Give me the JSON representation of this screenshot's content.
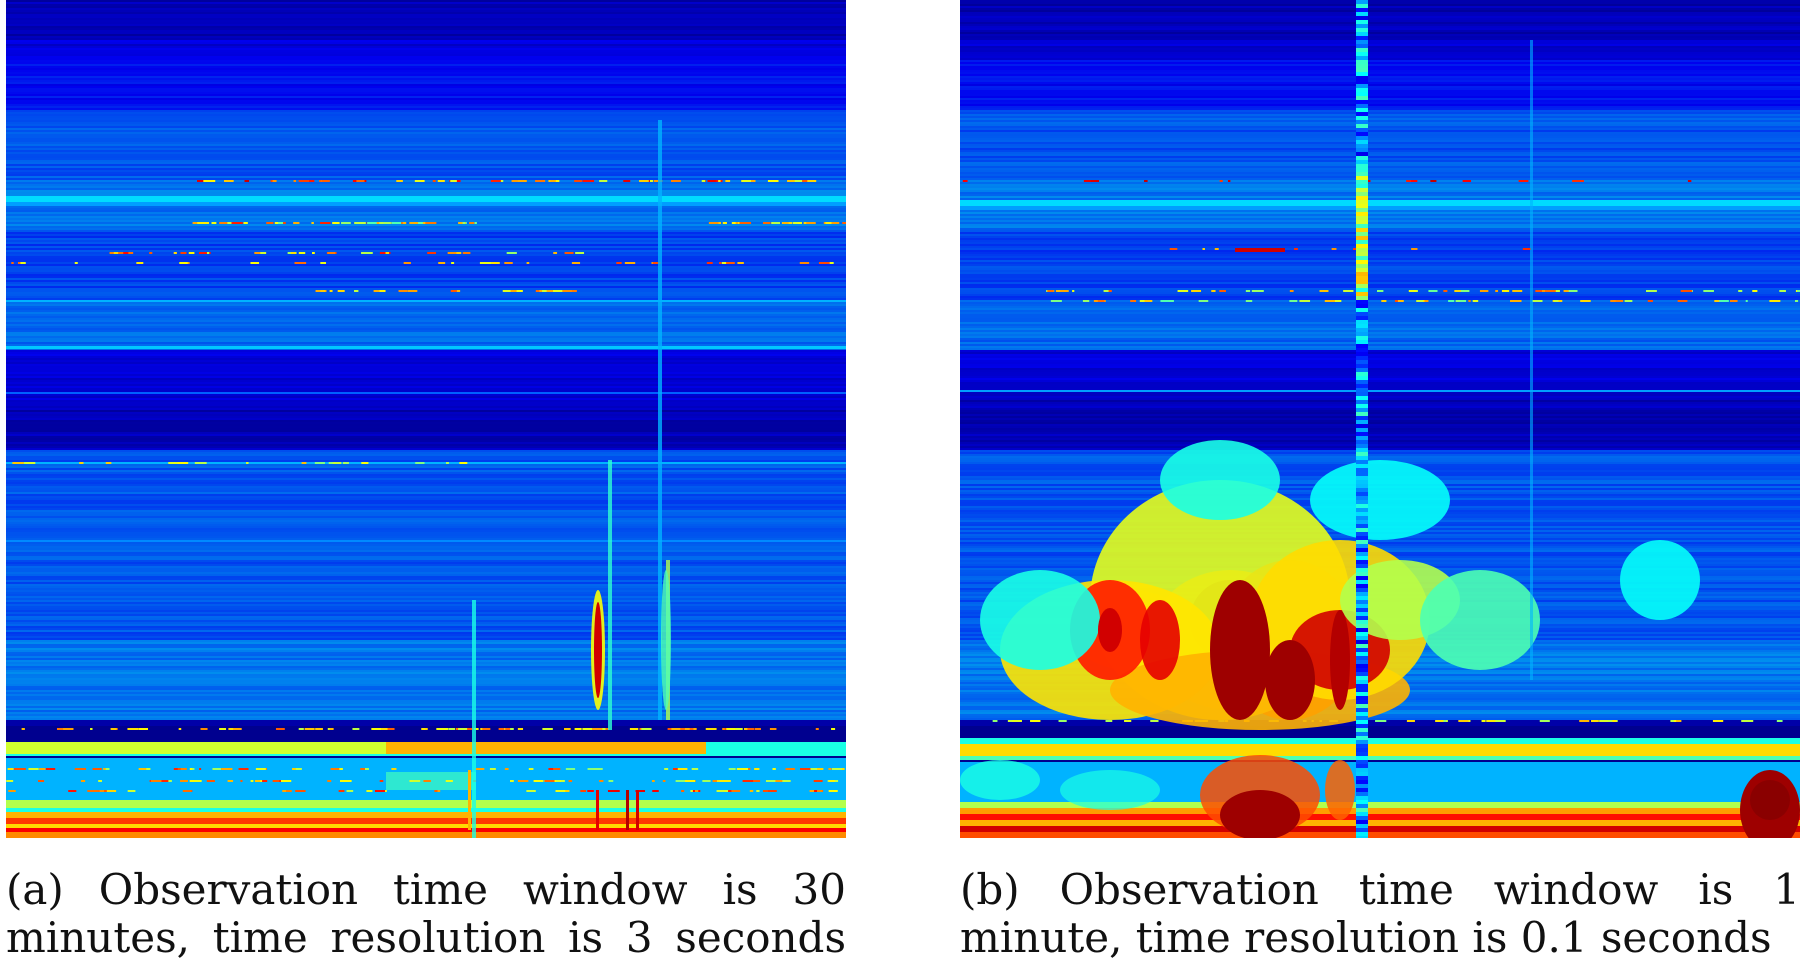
{
  "chart_data": [
    {
      "type": "heatmap",
      "colormap": "jet",
      "background_color": "#00008f",
      "caption": {
        "line1": "(a) Observation time window is 30",
        "line2": "minutes, time resolution is 3 seconds"
      }
    },
    {
      "type": "heatmap",
      "colormap": "jet",
      "background_color": "#00008f",
      "caption": {
        "line1": "(b) Observation time window is 1",
        "line2": "minute, time resolution is 0.1 seconds"
      }
    }
  ]
}
